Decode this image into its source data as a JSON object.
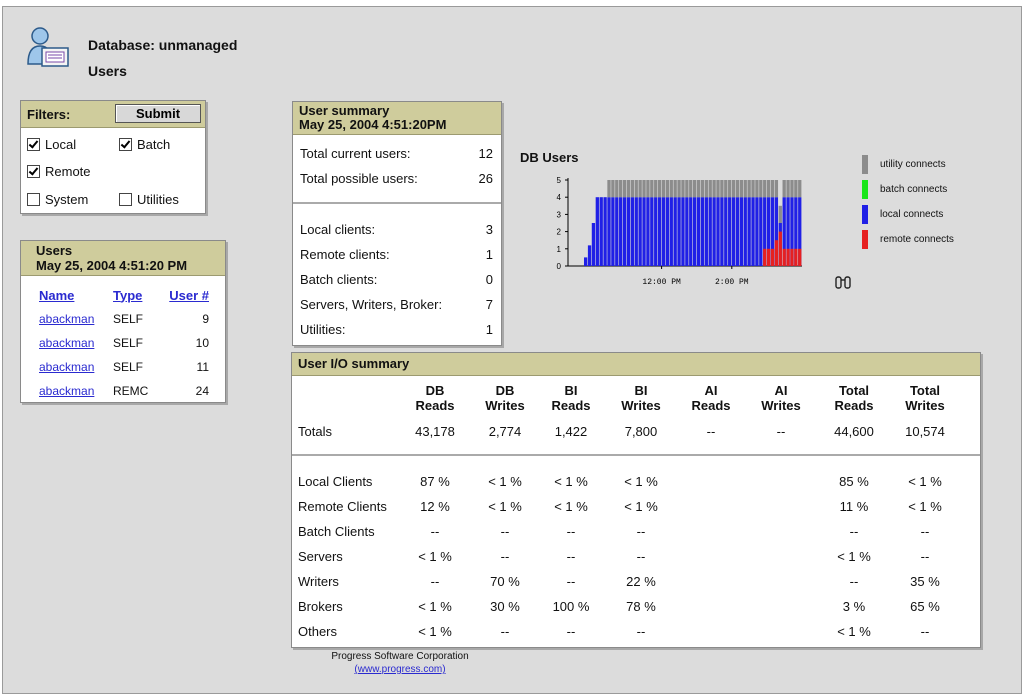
{
  "header": {
    "database_label": "Database: unmanaged",
    "page_title": "Users",
    "icon": "user-database-icon"
  },
  "filters": {
    "title": "Filters:",
    "submit_label": "Submit",
    "options": [
      {
        "label": "Local",
        "checked": true
      },
      {
        "label": "Batch",
        "checked": true
      },
      {
        "label": "Remote",
        "checked": true
      },
      {
        "label": "System",
        "checked": false
      },
      {
        "label": "Utilities",
        "checked": false
      }
    ]
  },
  "users": {
    "title": "Users",
    "timestamp": "May 25, 2004 4:51:20 PM",
    "columns": [
      "Name",
      "Type",
      "User #"
    ],
    "rows": [
      {
        "name": "abackman",
        "type": "SELF",
        "num": "9"
      },
      {
        "name": "abackman",
        "type": "SELF",
        "num": "10"
      },
      {
        "name": "abackman",
        "type": "SELF",
        "num": "11"
      },
      {
        "name": "abackman",
        "type": "REMC",
        "num": "24"
      }
    ]
  },
  "summary": {
    "title": "User summary",
    "timestamp": "May 25, 2004 4:51:20PM",
    "top": [
      {
        "label": "Total current users:",
        "value": "12"
      },
      {
        "label": "Total possible users:",
        "value": "26"
      }
    ],
    "bottom": [
      {
        "label": "Local clients:",
        "value": "3"
      },
      {
        "label": "Remote clients:",
        "value": "1"
      },
      {
        "label": "Batch clients:",
        "value": "0"
      },
      {
        "label": "Servers, Writers, Broker:",
        "value": "7"
      },
      {
        "label": "Utilities:",
        "value": "1"
      }
    ]
  },
  "chart_data": {
    "type": "bar",
    "title": "DB Users",
    "xlabel": "",
    "ylabel": "",
    "ylim": [
      0,
      5
    ],
    "yticks": [
      "0",
      "1",
      "2",
      "3",
      "4",
      "5"
    ],
    "xticks": [
      "12:00 PM",
      "2:00 PM"
    ],
    "legend_position": "right",
    "series": [
      {
        "name": "utility connects",
        "color": "#8c8c8c"
      },
      {
        "name": "batch connects",
        "color": "#19e619"
      },
      {
        "name": "local connects",
        "color": "#2020e6"
      },
      {
        "name": "remote connects",
        "color": "#e62020"
      }
    ],
    "values": {
      "local": [
        0.5,
        1.2,
        2.5,
        4,
        4,
        4,
        4,
        4,
        4,
        4,
        4,
        4,
        4,
        4,
        4,
        4,
        4,
        4,
        4,
        4,
        4,
        4,
        4,
        4,
        4,
        4,
        4,
        4,
        4,
        4,
        4,
        4,
        4,
        4,
        4,
        4,
        4,
        4,
        4,
        4,
        4,
        4,
        4,
        4,
        4,
        4,
        4,
        4,
        4,
        4,
        2.5,
        4,
        4,
        4,
        4,
        4
      ],
      "utility": [
        0,
        0,
        0,
        0,
        0,
        0,
        1,
        1,
        1,
        1,
        1,
        1,
        1,
        1,
        1,
        1,
        1,
        1,
        1,
        1,
        1,
        1,
        1,
        1,
        1,
        1,
        1,
        1,
        1,
        1,
        1,
        1,
        1,
        1,
        1,
        1,
        1,
        1,
        1,
        1,
        1,
        1,
        1,
        1,
        1,
        1,
        1,
        1,
        1,
        1,
        1,
        1,
        1,
        1,
        1,
        1
      ],
      "remote": [
        0,
        0,
        0,
        0,
        0,
        0,
        0,
        0,
        0,
        0,
        0,
        0,
        0,
        0,
        0,
        0,
        0,
        0,
        0,
        0,
        0,
        0,
        0,
        0,
        0,
        0,
        0,
        0,
        0,
        0,
        0,
        0,
        0,
        0,
        0,
        0,
        0,
        0,
        0,
        0,
        0,
        0,
        0,
        0,
        0,
        0,
        1,
        1,
        1,
        1.5,
        2,
        1,
        1,
        1,
        1,
        1
      ]
    }
  },
  "io": {
    "title": "User I/O summary",
    "columns": [
      [
        "DB",
        "Reads"
      ],
      [
        "DB",
        "Writes"
      ],
      [
        "BI",
        "Reads"
      ],
      [
        "BI",
        "Writes"
      ],
      [
        "AI",
        "Reads"
      ],
      [
        "AI",
        "Writes"
      ],
      [
        "Total",
        "Reads"
      ],
      [
        "Total",
        "Writes"
      ]
    ],
    "totals": {
      "label": "Totals",
      "values": [
        "43,178",
        "2,774",
        "1,422",
        "7,800",
        "--",
        "--",
        "44,600",
        "10,574"
      ]
    },
    "rows": [
      {
        "label": "Local Clients",
        "values": [
          "87 %",
          "< 1 %",
          "< 1 %",
          "< 1 %",
          "",
          "",
          "85 %",
          "< 1 %"
        ]
      },
      {
        "label": "Remote Clients",
        "values": [
          "12 %",
          "< 1 %",
          "< 1 %",
          "< 1 %",
          "",
          "",
          "11 %",
          "< 1 %"
        ]
      },
      {
        "label": "Batch Clients",
        "values": [
          "--",
          "--",
          "--",
          "--",
          "",
          "",
          "--",
          "--"
        ]
      },
      {
        "label": "Servers",
        "values": [
          "< 1 %",
          "--",
          "--",
          "--",
          "",
          "",
          "< 1 %",
          "--"
        ]
      },
      {
        "label": "Writers",
        "values": [
          "--",
          "70 %",
          "--",
          "22 %",
          "",
          "",
          "--",
          "35 %"
        ]
      },
      {
        "label": "Brokers",
        "values": [
          "< 1 %",
          "30 %",
          "100 %",
          "78 %",
          "",
          "",
          "3 %",
          "65 %"
        ]
      },
      {
        "label": "Others",
        "values": [
          "< 1 %",
          "--",
          "--",
          "--",
          "",
          "",
          "< 1 %",
          "--"
        ]
      }
    ]
  },
  "footer": {
    "company": "Progress Software Corporation",
    "link": "(www.progress.com)"
  }
}
